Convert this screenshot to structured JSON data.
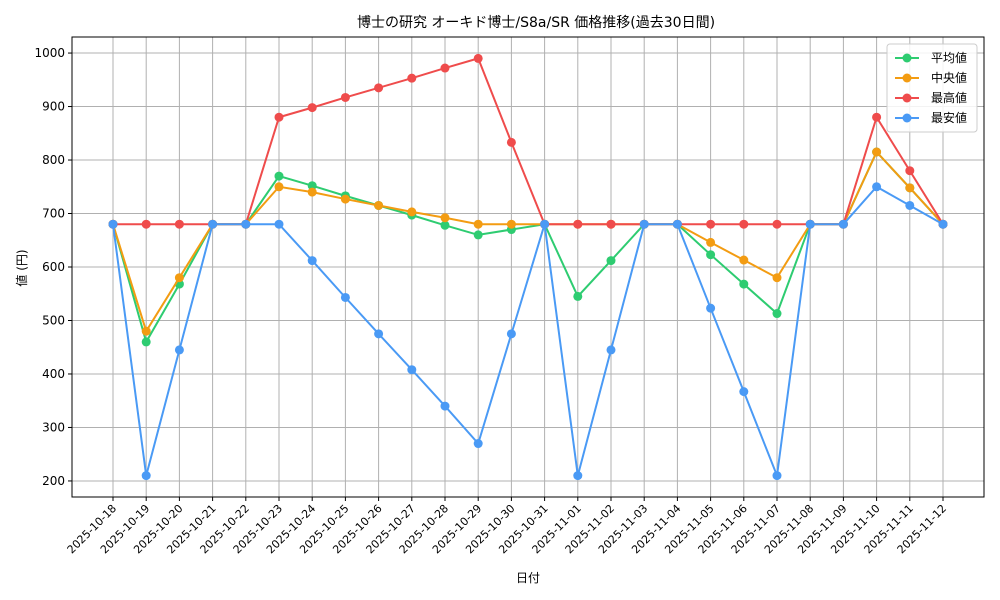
{
  "chart_data": {
    "type": "line",
    "title": "博士の研究 オーキド博士/S8a/SR 価格推移(過去30日間)",
    "xlabel": "日付",
    "ylabel": "値 (円)",
    "ylim": [
      170,
      1030
    ],
    "yticks": [
      200,
      300,
      400,
      500,
      600,
      700,
      800,
      900,
      1000
    ],
    "grid": true,
    "legend_position": "top-right",
    "categories": [
      "2025-10-18",
      "2025-10-19",
      "2025-10-20",
      "2025-10-21",
      "2025-10-22",
      "2025-10-23",
      "2025-10-24",
      "2025-10-25",
      "2025-10-26",
      "2025-10-27",
      "2025-10-28",
      "2025-10-29",
      "2025-10-30",
      "2025-10-31",
      "2025-11-01",
      "2025-11-02",
      "2025-11-03",
      "2025-11-04",
      "2025-11-05",
      "2025-11-06",
      "2025-11-07",
      "2025-11-08",
      "2025-11-09",
      "2025-11-10",
      "2025-11-11",
      "2025-11-12"
    ],
    "series": [
      {
        "name": "平均値",
        "color": "#2ecc71",
        "values": [
          680,
          460,
          568,
          680,
          680,
          770,
          752,
          733,
          715,
          697,
          678,
          660,
          670,
          680,
          545,
          612,
          680,
          680,
          623,
          568,
          513,
          680,
          680,
          815,
          748,
          680
        ]
      },
      {
        "name": "中央値",
        "color": "#f39c12",
        "values": [
          680,
          480,
          580,
          680,
          680,
          750,
          740,
          727,
          715,
          703,
          692,
          680,
          680,
          680,
          680,
          680,
          680,
          680,
          646,
          613,
          580,
          680,
          680,
          815,
          748,
          680
        ]
      },
      {
        "name": "最高値",
        "color": "#ef4c4c",
        "values": [
          680,
          680,
          680,
          680,
          680,
          880,
          898,
          917,
          935,
          953,
          972,
          990,
          833,
          680,
          680,
          680,
          680,
          680,
          680,
          680,
          680,
          680,
          680,
          880,
          780,
          680
        ]
      },
      {
        "name": "最安値",
        "color": "#4a9af5",
        "values": [
          680,
          210,
          445,
          680,
          680,
          680,
          612,
          543,
          475,
          408,
          340,
          270,
          475,
          680,
          210,
          445,
          680,
          680,
          523,
          367,
          210,
          680,
          680,
          750,
          715,
          680
        ]
      }
    ]
  }
}
